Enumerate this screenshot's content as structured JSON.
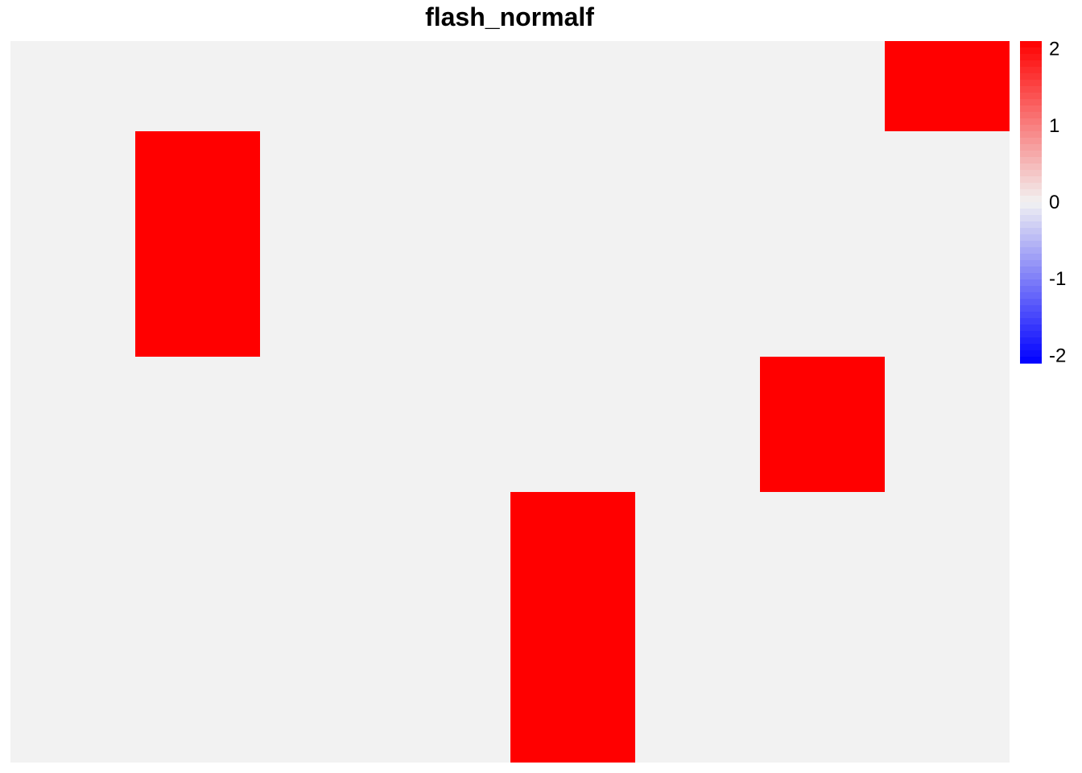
{
  "chart_data": {
    "type": "heatmap",
    "title": "flash_normalf",
    "n_cols": 8,
    "n_rows": 16,
    "background_value": 0,
    "cells": [
      {
        "col": 8,
        "row_start": 1,
        "row_end": 2,
        "value": 2.1
      },
      {
        "col": 2,
        "row_start": 3,
        "row_end": 7,
        "value": 2.1
      },
      {
        "col": 7,
        "row_start": 8,
        "row_end": 10,
        "value": 2.1
      },
      {
        "col": 5,
        "row_start": 11,
        "row_end": 16,
        "value": 2.1
      }
    ],
    "legend": {
      "min": -2.1,
      "max": 2.1,
      "ticks": [
        "2",
        "1",
        "0",
        "-1",
        "-2"
      ],
      "tick_values": [
        2,
        1,
        0,
        -1,
        -2
      ],
      "colors": {
        "low": "#0000ff",
        "mid": "#f2f2f2",
        "high": "#ff0000"
      },
      "placement": "right"
    }
  }
}
